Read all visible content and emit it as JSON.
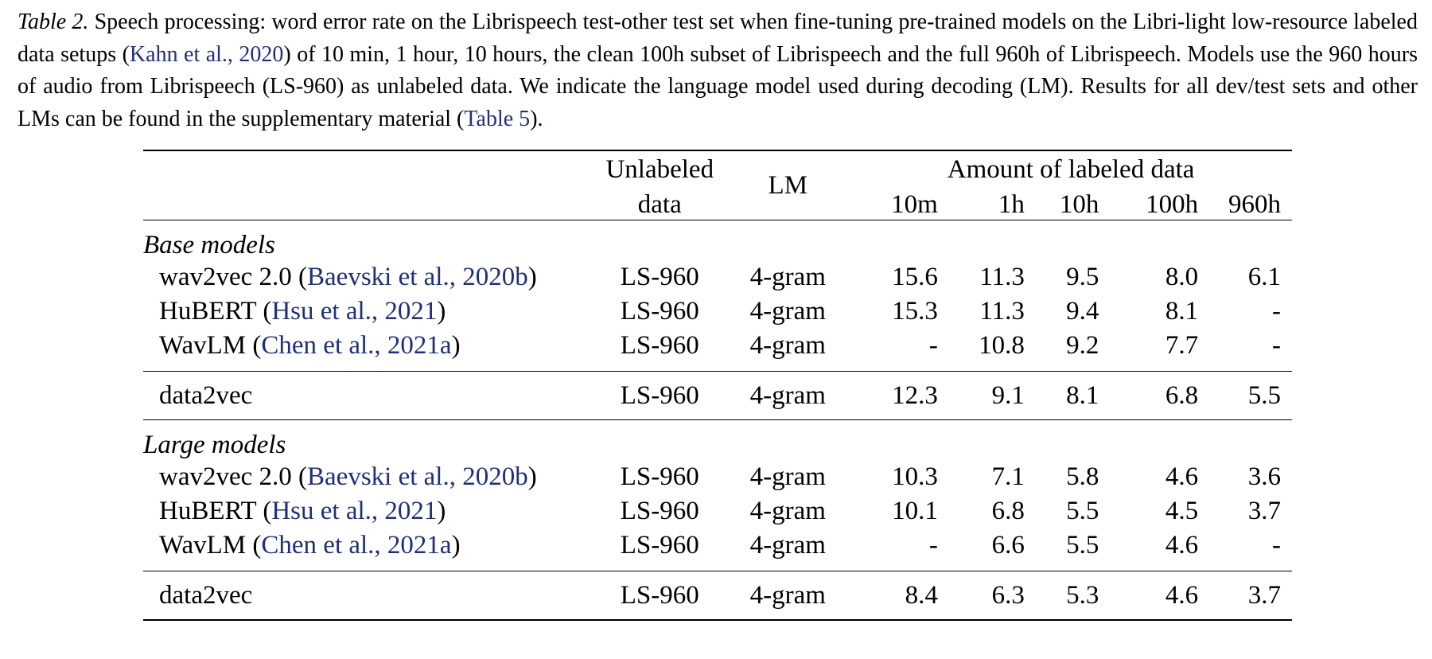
{
  "caption": {
    "label": "Table 2.",
    "text_1": " Speech processing: word error rate on the Librispeech test-other test set when fine-tuning pre-trained models on the Libri-light low-resource labeled data setups (",
    "cite_kahn": "Kahn et al., 2020",
    "text_2": ") of 10 min, 1 hour, 10 hours, the clean 100h subset of Librispeech and the full 960h of Librispeech. Models use the 960 hours of audio from Librispeech (LS-960) as unlabeled data. We indicate the language model used during decoding (LM). Results for all dev/test sets and other LMs can be found in the supplementary material (",
    "cite_table5": "Table 5",
    "text_3": ")."
  },
  "table": {
    "headers": {
      "unlabeled_line1": "Unlabeled",
      "unlabeled_line2": "data",
      "lm": "LM",
      "amount": "Amount of labeled data",
      "col_10m": "10m",
      "col_1h": "1h",
      "col_10h": "10h",
      "col_100h": "100h",
      "col_960h": "960h"
    },
    "base": {
      "group_label": "Base models",
      "rows": [
        {
          "name": "wav2vec 2.0 (",
          "cite": "Baevski et al., 2020b",
          "close": ")",
          "unlabeled": "LS-960",
          "lm": "4-gram",
          "m10": "15.6",
          "h1": "11.3",
          "h10": "9.5",
          "h100": "8.0",
          "h960": "6.1"
        },
        {
          "name": "HuBERT (",
          "cite": "Hsu et al., 2021",
          "close": ")",
          "unlabeled": "LS-960",
          "lm": "4-gram",
          "m10": "15.3",
          "h1": "11.3",
          "h10": "9.4",
          "h100": "8.1",
          "h960": "-"
        },
        {
          "name": "WavLM (",
          "cite": "Chen et al., 2021a",
          "close": ")",
          "unlabeled": "LS-960",
          "lm": "4-gram",
          "m10": "-",
          "h1": "10.8",
          "h10": "9.2",
          "h100": "7.7",
          "h960": "-"
        }
      ],
      "ours": {
        "name": "data2vec",
        "unlabeled": "LS-960",
        "lm": "4-gram",
        "m10": "12.3",
        "h1": "9.1",
        "h10": "8.1",
        "h100": "6.8",
        "h960": "5.5"
      }
    },
    "large": {
      "group_label": "Large models",
      "rows": [
        {
          "name": "wav2vec 2.0 (",
          "cite": "Baevski et al., 2020b",
          "close": ")",
          "unlabeled": "LS-960",
          "lm": "4-gram",
          "m10": "10.3",
          "h1": "7.1",
          "h10": "5.8",
          "h100": "4.6",
          "h960": "3.6"
        },
        {
          "name": "HuBERT (",
          "cite": "Hsu et al., 2021",
          "close": ")",
          "unlabeled": "LS-960",
          "lm": "4-gram",
          "m10": "10.1",
          "h1": "6.8",
          "h10": "5.5",
          "h100": "4.5",
          "h960": "3.7"
        },
        {
          "name": "WavLM (",
          "cite": "Chen et al., 2021a",
          "close": ")",
          "unlabeled": "LS-960",
          "lm": "4-gram",
          "m10": "-",
          "h1": "6.6",
          "h10": "5.5",
          "h100": "4.6",
          "h960": "-"
        }
      ],
      "ours": {
        "name": "data2vec",
        "unlabeled": "LS-960",
        "lm": "4-gram",
        "m10": "8.4",
        "h1": "6.3",
        "h10": "5.3",
        "h100": "4.6",
        "h960": "3.7"
      }
    },
    "colors": {
      "citation": "#1f2f7a",
      "text": "#000000"
    }
  }
}
